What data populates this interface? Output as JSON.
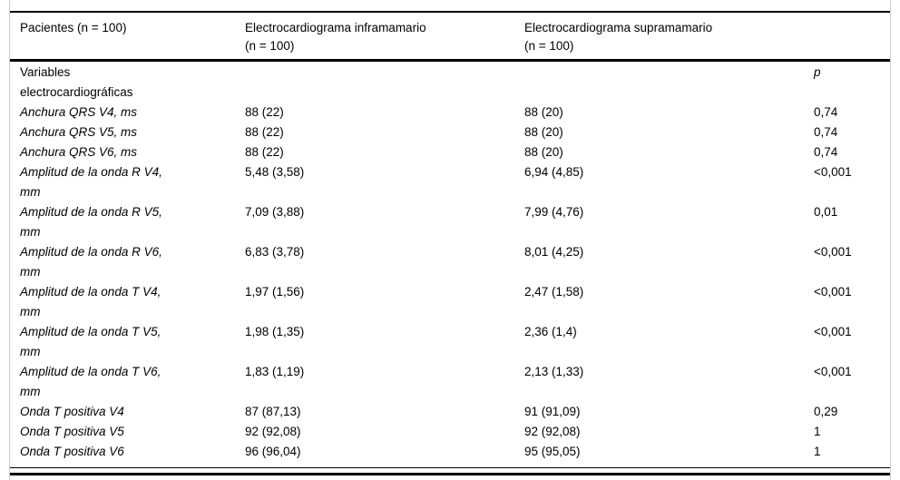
{
  "table": {
    "header": {
      "col1": "Pacientes (n = 100)",
      "col2_line1": "Electrocardiograma inframamario",
      "col2_line2": "(n = 100)",
      "col3_line1": "Electrocardiograma supramamario",
      "col3_line2": "(n = 100)",
      "col4": ""
    },
    "rows": [
      {
        "label": "Variables",
        "label2": "electrocardiográficas",
        "c1": "",
        "c2": "",
        "p": "p"
      },
      {
        "label": "Anchura QRS V4, ms",
        "label2": "",
        "c1": "88 (22)",
        "c2": "88 (20)",
        "p": "0,74"
      },
      {
        "label": "Anchura QRS V5, ms",
        "label2": "",
        "c1": "88 (22)",
        "c2": "88 (20)",
        "p": "0,74"
      },
      {
        "label": "Anchura QRS V6, ms",
        "label2": "",
        "c1": "88 (22)",
        "c2": "88 (20)",
        "p": "0,74"
      },
      {
        "label": "Amplitud de la onda R V4,",
        "label2": "mm",
        "c1": "5,48 (3,58)",
        "c2": "6,94 (4,85)",
        "p": "<0,001"
      },
      {
        "label": "Amplitud de la onda R V5,",
        "label2": "mm",
        "c1": "7,09 (3,88)",
        "c2": "7,99 (4,76)",
        "p": "0,01"
      },
      {
        "label": "Amplitud de la onda R V6,",
        "label2": "mm",
        "c1": "6,83 (3,78)",
        "c2": "8,01 (4,25)",
        "p": "<0,001"
      },
      {
        "label": "Amplitud de la onda T V4,",
        "label2": "mm",
        "c1": "1,97 (1,56)",
        "c2": "2,47 (1,58)",
        "p": "<0,001"
      },
      {
        "label": "Amplitud de la onda T V5,",
        "label2": "mm",
        "c1": "1,98 (1,35)",
        "c2": "2,36 (1,4)",
        "p": "<0,001"
      },
      {
        "label": "Amplitud de la onda T V6,",
        "label2": "mm",
        "c1": "1,83 (1,19)",
        "c2": "2,13 (1,33)",
        "p": "<0,001"
      },
      {
        "label": "Onda T positiva V4",
        "label2": "",
        "c1": "87 (87,13)",
        "c2": "91 (91,09)",
        "p": "0,29"
      },
      {
        "label": "Onda T positiva V5",
        "label2": "",
        "c1": "92 (92,08)",
        "c2": "92 (92,08)",
        "p": "1"
      },
      {
        "label": "Onda T positiva V6",
        "label2": "",
        "c1": "96 (96,04)",
        "c2": "95 (95,05)",
        "p": "1"
      }
    ],
    "colors": {
      "rule": "#000000",
      "side_edge": "#cccccc",
      "background": "#ffffff",
      "text": "#000000"
    }
  },
  "chart_data": {
    "type": "table",
    "columns": [
      "Pacientes (n = 100)",
      "Electrocardiograma inframamario (n = 100)",
      "Electrocardiograma supramamario (n = 100)",
      "p"
    ],
    "rows": [
      [
        "Variables electrocardiográficas",
        "",
        "",
        "p"
      ],
      [
        "Anchura QRS V4, ms",
        "88 (22)",
        "88 (20)",
        "0,74"
      ],
      [
        "Anchura QRS V5, ms",
        "88 (22)",
        "88 (20)",
        "0,74"
      ],
      [
        "Anchura QRS V6, ms",
        "88 (22)",
        "88 (20)",
        "0,74"
      ],
      [
        "Amplitud de la onda R V4, mm",
        "5,48 (3,58)",
        "6,94 (4,85)",
        "<0,001"
      ],
      [
        "Amplitud de la onda R V5, mm",
        "7,09 (3,88)",
        "7,99 (4,76)",
        "0,01"
      ],
      [
        "Amplitud de la onda R V6, mm",
        "6,83 (3,78)",
        "8,01 (4,25)",
        "<0,001"
      ],
      [
        "Amplitud de la onda T V4, mm",
        "1,97 (1,56)",
        "2,47 (1,58)",
        "<0,001"
      ],
      [
        "Amplitud de la onda T V5, mm",
        "1,98 (1,35)",
        "2,36 (1,4)",
        "<0,001"
      ],
      [
        "Amplitud de la onda T V6, mm",
        "1,83 (1,19)",
        "2,13 (1,33)",
        "<0,001"
      ],
      [
        "Onda T positiva V4",
        "87 (87,13)",
        "91 (91,09)",
        "0,29"
      ],
      [
        "Onda T positiva V5",
        "92 (92,08)",
        "92 (92,08)",
        "1"
      ],
      [
        "Onda T positiva V6",
        "96 (96,04)",
        "95 (95,05)",
        "1"
      ]
    ]
  }
}
